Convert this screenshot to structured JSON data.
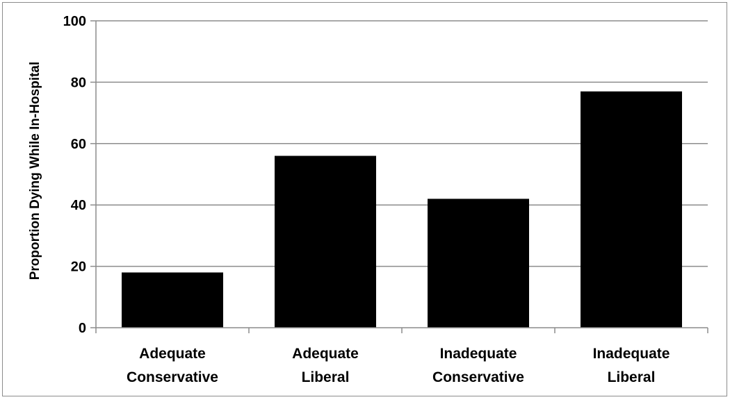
{
  "chart_data": {
    "type": "bar",
    "categories": [
      [
        "Adequate",
        "Conservative"
      ],
      [
        "Adequate",
        "Liberal"
      ],
      [
        "Inadequate",
        "Conservative"
      ],
      [
        "Inadequate",
        "Liberal"
      ]
    ],
    "values": [
      18,
      56,
      42,
      77
    ],
    "ylabel": "Proportion Dying While In-Hospital",
    "ylim": [
      0,
      100
    ],
    "yticks": [
      0,
      20,
      40,
      60,
      80,
      100
    ],
    "grid": true,
    "legend": "none",
    "colors": {
      "bar": "#000000",
      "grid": "#8c8c8c",
      "axis": "#8c8c8c"
    }
  }
}
